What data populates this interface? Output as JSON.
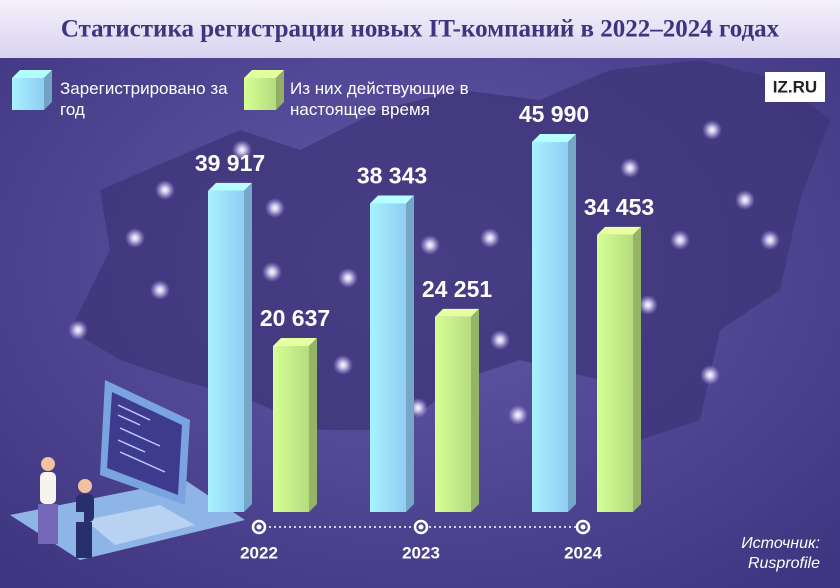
{
  "chart_data": {
    "type": "bar",
    "title": "Статистика регистрации новых IT-компаний в 2022–2024 годах",
    "logo": "IZ.RU",
    "categories": [
      "2022",
      "2023",
      "2024"
    ],
    "series": [
      {
        "name": "Зарегистрировано за год",
        "color": "#8fcdf3",
        "values": [
          39917,
          38343,
          45990
        ],
        "value_labels": [
          "39 917",
          "38 343",
          "45 990"
        ]
      },
      {
        "name": "Из них действующие в настоящее время",
        "color": "#b5dc7e",
        "values": [
          20637,
          24251,
          34453
        ],
        "value_labels": [
          "20 637",
          "24 251",
          "34 453"
        ]
      }
    ],
    "source": {
      "label": "Источник:",
      "name": "Rusprofile"
    }
  }
}
